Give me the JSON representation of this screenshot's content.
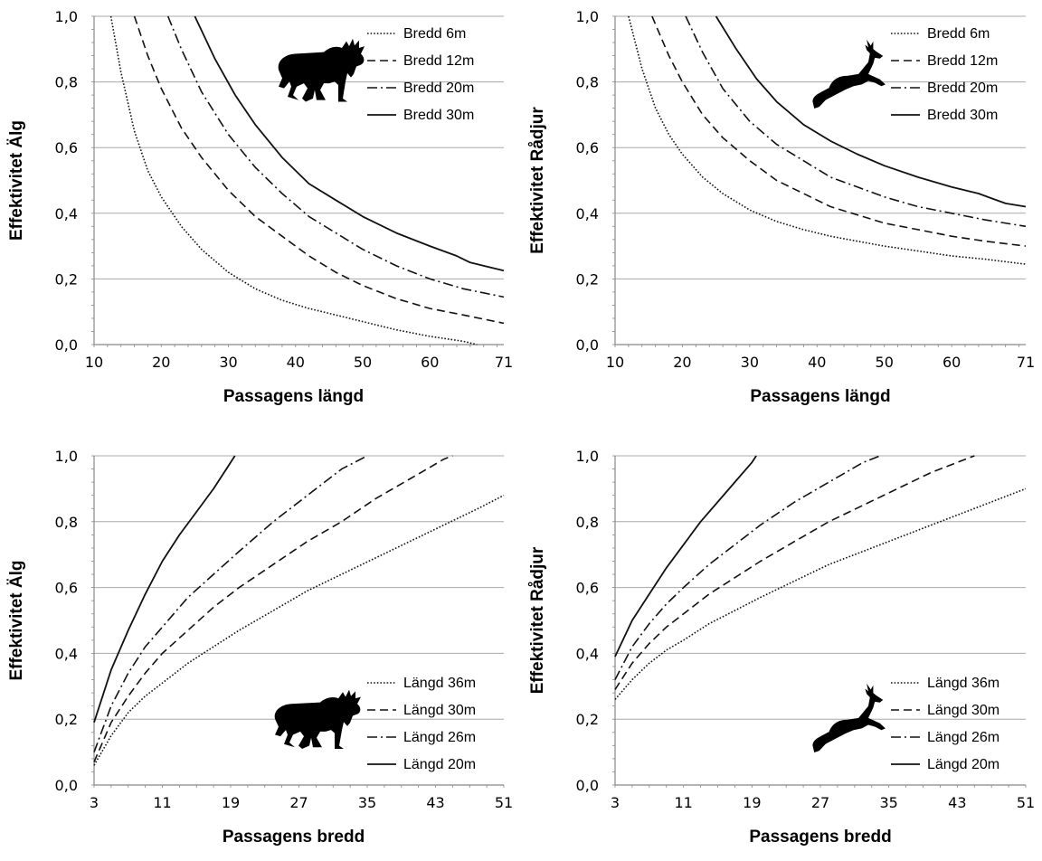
{
  "chart_data": [
    {
      "type": "line",
      "panel": "top-left",
      "ylabel": "Effektivitet Älg",
      "xlabel": "Passagens längd",
      "xlim": [
        10,
        71
      ],
      "ylim": [
        0,
        1
      ],
      "xticks": [
        10,
        20,
        30,
        40,
        50,
        60,
        71
      ],
      "yticks": [
        0,
        0.2,
        0.4,
        0.6,
        0.8,
        1.0
      ],
      "ytick_labels": [
        "0,0",
        "0,2",
        "0,4",
        "0,6",
        "0,8",
        "1,0"
      ],
      "grid": "horizontal",
      "legend": "top-right",
      "icon": "moose-icon",
      "series": [
        {
          "name": "Bredd 6m",
          "style": "dotted",
          "x": [
            12.5,
            14,
            16,
            18,
            20,
            23,
            26,
            30,
            34,
            38,
            42,
            46,
            50,
            55,
            60,
            65,
            67
          ],
          "y": [
            1.0,
            0.83,
            0.65,
            0.53,
            0.45,
            0.36,
            0.29,
            0.22,
            0.17,
            0.135,
            0.11,
            0.09,
            0.07,
            0.045,
            0.025,
            0.01,
            0.0
          ]
        },
        {
          "name": "Bredd 12m",
          "style": "dashed",
          "x": [
            16,
            18,
            20,
            23,
            26,
            30,
            34,
            38,
            42,
            46,
            50,
            55,
            60,
            65,
            71
          ],
          "y": [
            1.0,
            0.88,
            0.78,
            0.66,
            0.57,
            0.47,
            0.39,
            0.33,
            0.27,
            0.22,
            0.18,
            0.14,
            0.11,
            0.09,
            0.065
          ]
        },
        {
          "name": "Bredd 20m",
          "style": "dashdot",
          "x": [
            21,
            23,
            26,
            30,
            34,
            38,
            42,
            46,
            50,
            55,
            60,
            65,
            71
          ],
          "y": [
            1.0,
            0.9,
            0.77,
            0.64,
            0.54,
            0.46,
            0.39,
            0.34,
            0.29,
            0.24,
            0.2,
            0.17,
            0.145
          ]
        },
        {
          "name": "Bredd 30m",
          "style": "solid",
          "x": [
            25,
            28,
            31,
            34,
            38,
            42,
            46,
            50,
            55,
            60,
            64,
            66,
            68,
            71
          ],
          "y": [
            1.0,
            0.87,
            0.76,
            0.67,
            0.57,
            0.49,
            0.44,
            0.39,
            0.34,
            0.3,
            0.27,
            0.25,
            0.24,
            0.225
          ]
        }
      ]
    },
    {
      "type": "line",
      "panel": "top-right",
      "ylabel": "Effektivitet Rådjur",
      "xlabel": "Passagens längd",
      "xlim": [
        10,
        71
      ],
      "ylim": [
        0,
        1
      ],
      "xticks": [
        10,
        20,
        30,
        40,
        50,
        60,
        71
      ],
      "yticks": [
        0,
        0.2,
        0.4,
        0.6,
        0.8,
        1.0
      ],
      "ytick_labels": [
        "0,0",
        "0,2",
        "0,4",
        "0,6",
        "0,8",
        "1,0"
      ],
      "grid": "horizontal",
      "legend": "top-right",
      "icon": "deer-icon",
      "series": [
        {
          "name": "Bredd 6m",
          "style": "dotted",
          "x": [
            12,
            14,
            16,
            18,
            20,
            23,
            26,
            30,
            34,
            38,
            42,
            46,
            50,
            55,
            60,
            65,
            71
          ],
          "y": [
            1.0,
            0.84,
            0.72,
            0.64,
            0.58,
            0.51,
            0.46,
            0.41,
            0.375,
            0.35,
            0.33,
            0.315,
            0.3,
            0.285,
            0.27,
            0.26,
            0.245
          ]
        },
        {
          "name": "Bredd 12m",
          "style": "dashed",
          "x": [
            15.5,
            18,
            20,
            23,
            26,
            30,
            34,
            38,
            42,
            46,
            50,
            55,
            60,
            65,
            71
          ],
          "y": [
            1.0,
            0.88,
            0.8,
            0.7,
            0.63,
            0.56,
            0.5,
            0.46,
            0.42,
            0.395,
            0.37,
            0.35,
            0.33,
            0.315,
            0.3
          ]
        },
        {
          "name": "Bredd 20m",
          "style": "dashdot",
          "x": [
            20.5,
            23,
            26,
            30,
            34,
            38,
            42,
            46,
            50,
            55,
            60,
            65,
            71
          ],
          "y": [
            1.0,
            0.89,
            0.78,
            0.68,
            0.61,
            0.56,
            0.51,
            0.48,
            0.45,
            0.42,
            0.4,
            0.38,
            0.36
          ]
        },
        {
          "name": "Bredd 30m",
          "style": "solid",
          "x": [
            25,
            28,
            31,
            34,
            38,
            42,
            46,
            50,
            55,
            60,
            64,
            66,
            68,
            71
          ],
          "y": [
            1.0,
            0.9,
            0.81,
            0.74,
            0.67,
            0.62,
            0.58,
            0.545,
            0.51,
            0.48,
            0.46,
            0.445,
            0.43,
            0.42
          ]
        }
      ]
    },
    {
      "type": "line",
      "panel": "bottom-left",
      "ylabel": "Effektivitet Älg",
      "xlabel": "Passagens bredd",
      "xlim": [
        3,
        51
      ],
      "ylim": [
        0,
        1
      ],
      "xticks": [
        3,
        11,
        19,
        27,
        35,
        43,
        51
      ],
      "yticks": [
        0,
        0.2,
        0.4,
        0.6,
        0.8,
        1.0
      ],
      "ytick_labels": [
        "0,0",
        "0,2",
        "0,4",
        "0,6",
        "0,8",
        "1,0"
      ],
      "grid": "horizontal",
      "legend": "bottom-right",
      "icon": "moose-icon",
      "series": [
        {
          "name": "Längd 36m",
          "style": "dotted",
          "x": [
            3,
            5,
            7,
            9,
            11,
            14,
            17,
            20,
            24,
            28,
            32,
            36,
            40,
            44,
            48,
            51
          ],
          "y": [
            0.06,
            0.15,
            0.22,
            0.27,
            0.31,
            0.37,
            0.42,
            0.47,
            0.53,
            0.59,
            0.64,
            0.69,
            0.74,
            0.79,
            0.84,
            0.88
          ]
        },
        {
          "name": "Längd 30m",
          "style": "dashed",
          "x": [
            3,
            5,
            7,
            9,
            11,
            14,
            17,
            20,
            24,
            28,
            32,
            36,
            40,
            44,
            45
          ],
          "y": [
            0.07,
            0.19,
            0.27,
            0.34,
            0.4,
            0.47,
            0.54,
            0.6,
            0.67,
            0.74,
            0.8,
            0.87,
            0.93,
            0.99,
            1.0
          ]
        },
        {
          "name": "Längd 26m",
          "style": "dashdot",
          "x": [
            3,
            5,
            7,
            9,
            11,
            14,
            17,
            20,
            24,
            28,
            32,
            35
          ],
          "y": [
            0.1,
            0.24,
            0.34,
            0.42,
            0.48,
            0.57,
            0.64,
            0.71,
            0.8,
            0.88,
            0.96,
            1.0
          ]
        },
        {
          "name": "Längd 20m",
          "style": "solid",
          "x": [
            3,
            5,
            7,
            9,
            11,
            13,
            15,
            17,
            19,
            19.5
          ],
          "y": [
            0.19,
            0.35,
            0.47,
            0.58,
            0.68,
            0.76,
            0.83,
            0.9,
            0.98,
            1.0
          ]
        }
      ]
    },
    {
      "type": "line",
      "panel": "bottom-right",
      "ylabel": "Effektivitet Rådjur",
      "xlabel": "Passagens bredd",
      "xlim": [
        3,
        51
      ],
      "ylim": [
        0,
        1
      ],
      "xticks": [
        3,
        11,
        19,
        27,
        35,
        43,
        51
      ],
      "yticks": [
        0,
        0.2,
        0.4,
        0.6,
        0.8,
        1.0
      ],
      "ytick_labels": [
        "0,0",
        "0,2",
        "0,4",
        "0,6",
        "0,8",
        "1,0"
      ],
      "grid": "horizontal",
      "legend": "bottom-right",
      "icon": "deer-icon",
      "series": [
        {
          "name": "Längd 36m",
          "style": "dotted",
          "x": [
            3,
            5,
            7,
            9,
            11,
            14,
            17,
            20,
            24,
            28,
            32,
            36,
            40,
            44,
            48,
            51
          ],
          "y": [
            0.26,
            0.32,
            0.37,
            0.41,
            0.44,
            0.49,
            0.53,
            0.57,
            0.62,
            0.67,
            0.71,
            0.75,
            0.79,
            0.83,
            0.87,
            0.9
          ]
        },
        {
          "name": "Längd 30m",
          "style": "dashed",
          "x": [
            3,
            5,
            7,
            9,
            11,
            14,
            17,
            20,
            24,
            28,
            32,
            36,
            40,
            44,
            45
          ],
          "y": [
            0.29,
            0.37,
            0.43,
            0.48,
            0.52,
            0.58,
            0.63,
            0.68,
            0.74,
            0.8,
            0.85,
            0.9,
            0.95,
            0.99,
            1.0
          ]
        },
        {
          "name": "Längd 26m",
          "style": "dashdot",
          "x": [
            3,
            5,
            7,
            9,
            11,
            14,
            17,
            20,
            24,
            28,
            32,
            34
          ],
          "y": [
            0.32,
            0.42,
            0.49,
            0.55,
            0.6,
            0.67,
            0.73,
            0.79,
            0.86,
            0.92,
            0.98,
            1.0
          ]
        },
        {
          "name": "Längd 20m",
          "style": "solid",
          "x": [
            3,
            5,
            7,
            9,
            11,
            13,
            15,
            17,
            19,
            19.5
          ],
          "y": [
            0.39,
            0.5,
            0.58,
            0.66,
            0.73,
            0.8,
            0.86,
            0.92,
            0.98,
            1.0
          ]
        }
      ]
    }
  ]
}
